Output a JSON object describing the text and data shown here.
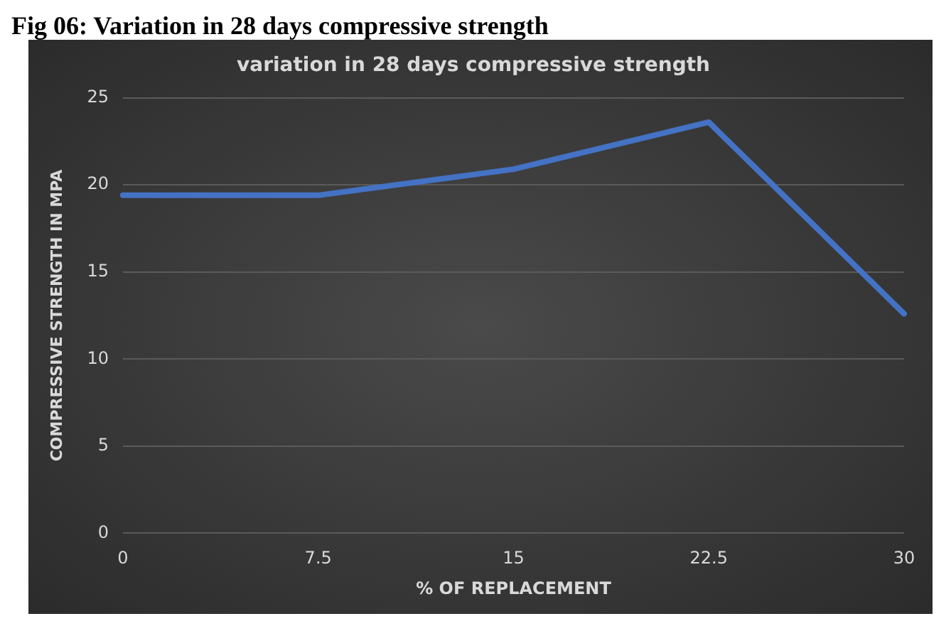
{
  "chart_data": {
    "type": "line",
    "title": "Fig 06: Variation in 28 days compressive strength",
    "subtitle": "variation in 28 days compressive strength",
    "xlabel": "% OF REPLACEMENT",
    "ylabel": "COMPRESSIVE STRENGTH IN MPA",
    "categories": [
      "0",
      "7.5",
      "15",
      "22.5",
      "30"
    ],
    "series": [
      {
        "color": "#4472c4",
        "values": [
          19.4,
          19.4,
          20.9,
          23.6,
          12.6
        ]
      }
    ],
    "ylim": [
      0,
      25
    ],
    "yticks": [
      0,
      5,
      10,
      15,
      20,
      25
    ],
    "grid": "y",
    "legend": false,
    "marker": "none",
    "line_style": "solid"
  }
}
